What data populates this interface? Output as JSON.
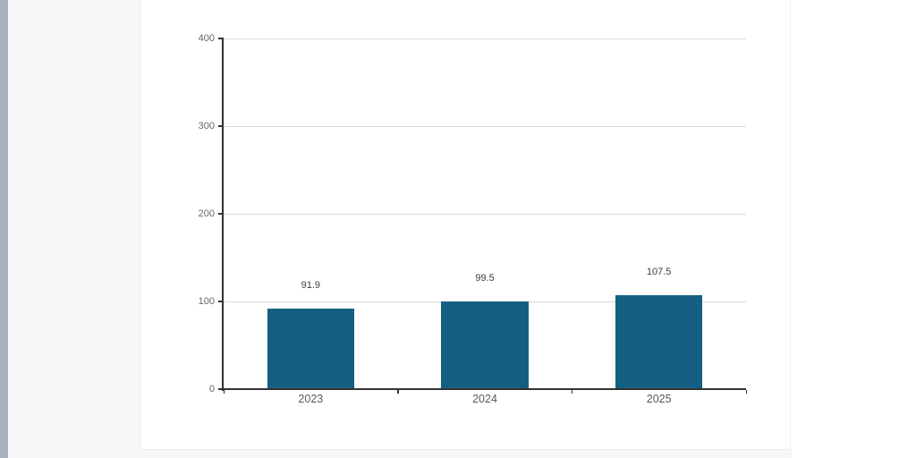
{
  "page": {
    "background_color": "#ffffff",
    "gutter_color": "#f7f7f8",
    "left_strip_color": "#aaafbe",
    "card_background": "#ffffff",
    "card_border_color": "#efefef"
  },
  "chart_data": {
    "type": "bar",
    "title": "",
    "xlabel": "",
    "ylabel": "",
    "categories": [
      "2023",
      "2024",
      "2025"
    ],
    "values": [
      91.9,
      99.5,
      107.5
    ],
    "value_labels": [
      "91.9",
      "99.5",
      "107.5"
    ],
    "ylim": [
      0,
      400
    ],
    "yticks": [
      0,
      100,
      200,
      300,
      400
    ],
    "ytick_labels": [
      "0",
      "100",
      "200",
      "300",
      "400"
    ],
    "grid": true,
    "legend": false,
    "colors": {
      "bar": "#156082",
      "gridline": "#d9d9d9",
      "axis": "#333333",
      "tick_label": "#666666",
      "category_label": "#595959",
      "data_label": "#3d3d3d"
    }
  }
}
